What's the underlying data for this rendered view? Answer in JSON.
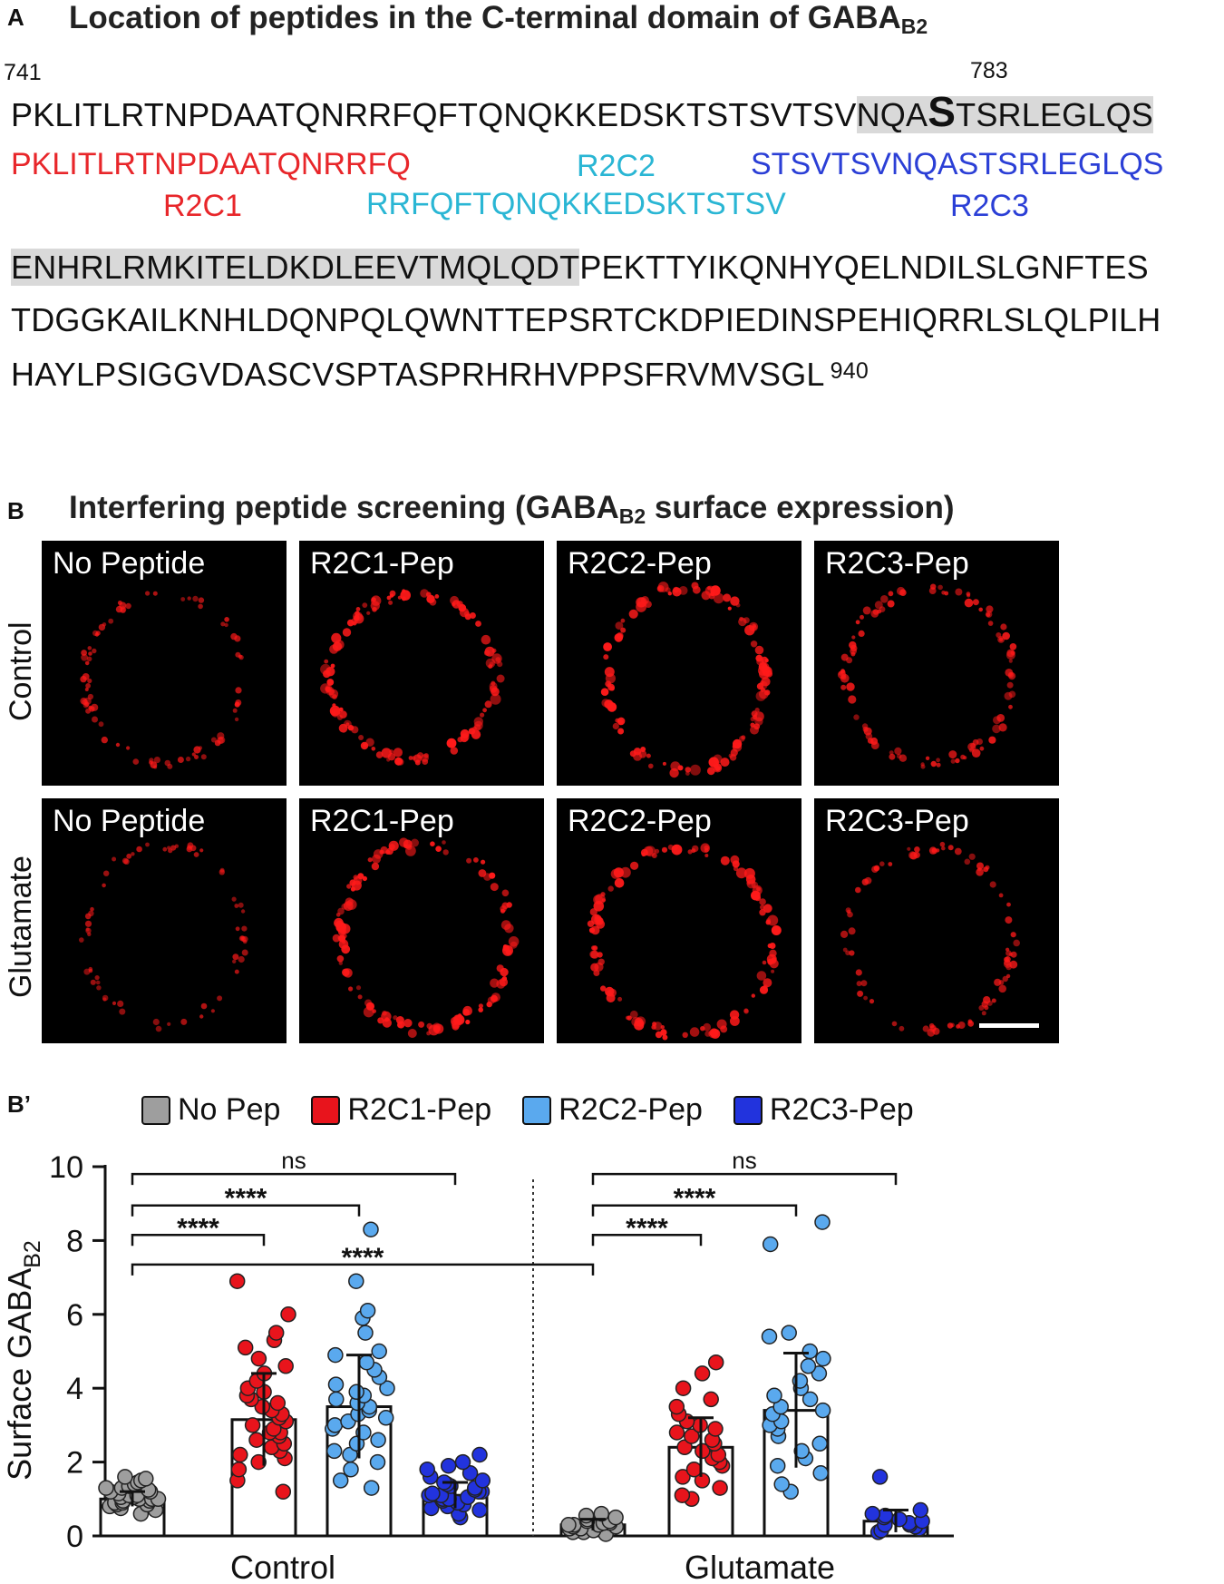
{
  "panel_a": {
    "letter": "A",
    "title": "Location of peptides in the C-terminal domain of GABA",
    "title_sub": "B2",
    "start_num": "741",
    "marker_num": "783",
    "end_num": "940",
    "line1_pre": "PKLITLRTNPDAATQNRRFQFTQNQKKEDSKTSTSVTSV",
    "line1_hl_a": "NQA",
    "line1_hl_big": "S",
    "line1_hl_b": "TSRLEGLQS",
    "line2_hl": "ENHRLRMKITELDKDLEEVTMQLQDT",
    "line2_rest": "PEKTTYIKQNHYQELNDILSLGNFTES",
    "line3": "TDGGKAILKNHLDQNPQLQWNTTEPSRTCKDPIEDINSPEHIQRRLSLQLPILH",
    "line4": "HAYLPSIGGVDASCVSPTASPRHRHVPPSFRVMVSGL",
    "peptides": {
      "r2c1_seq": "PKLITLRTNPDAATQNRRFQ",
      "r2c1_name": "R2C1",
      "r2c2_name": "R2C2",
      "r2c2_seq": "RRFQFTQNQKKEDSKTSTSV",
      "r2c3_seq": "STSVTSVNQASTSRLEGLQS",
      "r2c3_name": "R2C3"
    },
    "colors": {
      "r2c1": "#e8262a",
      "r2c2": "#2ab6d4",
      "r2c3": "#2b3fd6"
    }
  },
  "panel_b": {
    "letter": "B",
    "title_pre": "Interfering peptide screening (GABA",
    "title_sub": "B2",
    "title_post": " surface expression)",
    "row_labels": [
      "Control",
      "Glutamate"
    ],
    "image_labels": [
      "No Peptide",
      "R2C1-Pep",
      "R2C2-Pep",
      "R2C3-Pep",
      "No Peptide",
      "R2C1-Pep",
      "R2C2-Pep",
      "R2C3-Pep"
    ],
    "signal_color": "#ff1a1a",
    "scale_bar_color": "#ffffff"
  },
  "panel_b2": {
    "letter": "B’",
    "legend": [
      {
        "label": "No Pep",
        "color": "#9e9e9e"
      },
      {
        "label": "R2C1-Pep",
        "color": "#e8141c"
      },
      {
        "label": "R2C2-Pep",
        "color": "#5aa9ee"
      },
      {
        "label": "R2C3-Pep",
        "color": "#2233dd"
      }
    ]
  },
  "chart_data": {
    "type": "bar",
    "ylabel": "Surface GABA",
    "ylabel_sub": "B2",
    "xlabel": "",
    "ylim": [
      0,
      10
    ],
    "yticks": [
      0,
      2,
      4,
      6,
      8,
      10
    ],
    "categories": [
      "Control",
      "Glutamate"
    ],
    "series": [
      {
        "name": "No Pep",
        "values": [
          1.0,
          0.3
        ],
        "sd": [
          0.2,
          0.15
        ]
      },
      {
        "name": "R2C1-Pep",
        "values": [
          3.15,
          2.4
        ],
        "sd": [
          1.25,
          0.8
        ]
      },
      {
        "name": "R2C2-Pep",
        "values": [
          3.5,
          3.4
        ],
        "sd": [
          1.4,
          1.55
        ]
      },
      {
        "name": "R2C3-Pep",
        "values": [
          1.1,
          0.4
        ],
        "sd": [
          0.35,
          0.3
        ]
      }
    ],
    "points": {
      "Control": {
        "No Pep": [
          0.6,
          0.7,
          0.75,
          0.8,
          0.85,
          0.85,
          0.9,
          0.9,
          0.95,
          0.95,
          1.0,
          1.0,
          1.0,
          1.05,
          1.05,
          1.1,
          1.1,
          1.1,
          1.15,
          1.2,
          1.2,
          1.25,
          1.3,
          1.3,
          1.35,
          1.4,
          1.45,
          1.5,
          1.55,
          1.6
        ],
        "R2C1-Pep": [
          1.2,
          1.5,
          1.8,
          2.0,
          2.1,
          2.2,
          2.3,
          2.4,
          2.5,
          2.6,
          2.7,
          2.8,
          2.8,
          2.9,
          3.0,
          3.1,
          3.2,
          3.3,
          3.4,
          3.5,
          3.6,
          3.7,
          3.8,
          3.9,
          4.0,
          4.2,
          4.4,
          4.6,
          4.8,
          5.1,
          5.3,
          5.5,
          6.0,
          6.9
        ],
        "R2C2-Pep": [
          1.3,
          1.5,
          1.8,
          2.0,
          2.2,
          2.3,
          2.5,
          2.6,
          2.8,
          2.9,
          3.0,
          3.1,
          3.2,
          3.3,
          3.4,
          3.5,
          3.6,
          3.7,
          3.8,
          3.9,
          4.0,
          4.1,
          4.3,
          4.5,
          4.7,
          4.9,
          5.0,
          5.5,
          5.9,
          6.1,
          6.9,
          8.3
        ],
        "R2C3-Pep": [
          0.5,
          0.6,
          0.7,
          0.75,
          0.8,
          0.85,
          0.9,
          0.95,
          1.0,
          1.0,
          1.05,
          1.1,
          1.1,
          1.15,
          1.2,
          1.2,
          1.25,
          1.3,
          1.35,
          1.4,
          1.45,
          1.5,
          1.6,
          1.7,
          1.8,
          1.9,
          2.0,
          2.2
        ]
      },
      "Glutamate": {
        "No Pep": [
          0.05,
          0.1,
          0.1,
          0.15,
          0.2,
          0.2,
          0.25,
          0.25,
          0.3,
          0.3,
          0.3,
          0.35,
          0.35,
          0.4,
          0.4,
          0.45,
          0.5,
          0.55,
          0.6
        ],
        "R2C1-Pep": [
          1.0,
          1.1,
          1.3,
          1.5,
          1.6,
          1.8,
          1.9,
          2.0,
          2.1,
          2.2,
          2.3,
          2.4,
          2.5,
          2.6,
          2.7,
          2.8,
          2.9,
          3.0,
          3.1,
          3.3,
          3.5,
          3.7,
          4.0,
          4.4,
          4.7
        ],
        "R2C2-Pep": [
          1.2,
          1.4,
          1.7,
          1.9,
          2.1,
          2.3,
          2.5,
          2.7,
          2.9,
          3.0,
          3.1,
          3.3,
          3.4,
          3.5,
          3.7,
          3.8,
          4.0,
          4.2,
          4.4,
          4.6,
          4.8,
          5.0,
          5.4,
          5.5,
          7.9,
          8.5
        ],
        "R2C3-Pep": [
          0.1,
          0.15,
          0.2,
          0.25,
          0.3,
          0.3,
          0.35,
          0.4,
          0.45,
          0.5,
          0.55,
          0.6,
          0.7,
          1.6
        ]
      }
    },
    "significance": [
      {
        "group": "Control",
        "from": "No Pep",
        "to": "R2C1-Pep",
        "label": "****"
      },
      {
        "group": "Control",
        "from": "No Pep",
        "to": "R2C2-Pep",
        "label": "****"
      },
      {
        "group": "Control",
        "from": "No Pep",
        "to": "R2C3-Pep",
        "label": "ns"
      },
      {
        "group": "Glutamate",
        "from": "No Pep",
        "to": "R2C1-Pep",
        "label": "****"
      },
      {
        "group": "Glutamate",
        "from": "No Pep",
        "to": "R2C2-Pep",
        "label": "****"
      },
      {
        "group": "Glutamate",
        "from": "No Pep",
        "to": "R2C3-Pep",
        "label": "ns"
      },
      {
        "group": "across",
        "from": "Control No Pep",
        "to": "Glutamate No Pep",
        "label": "****"
      }
    ]
  }
}
